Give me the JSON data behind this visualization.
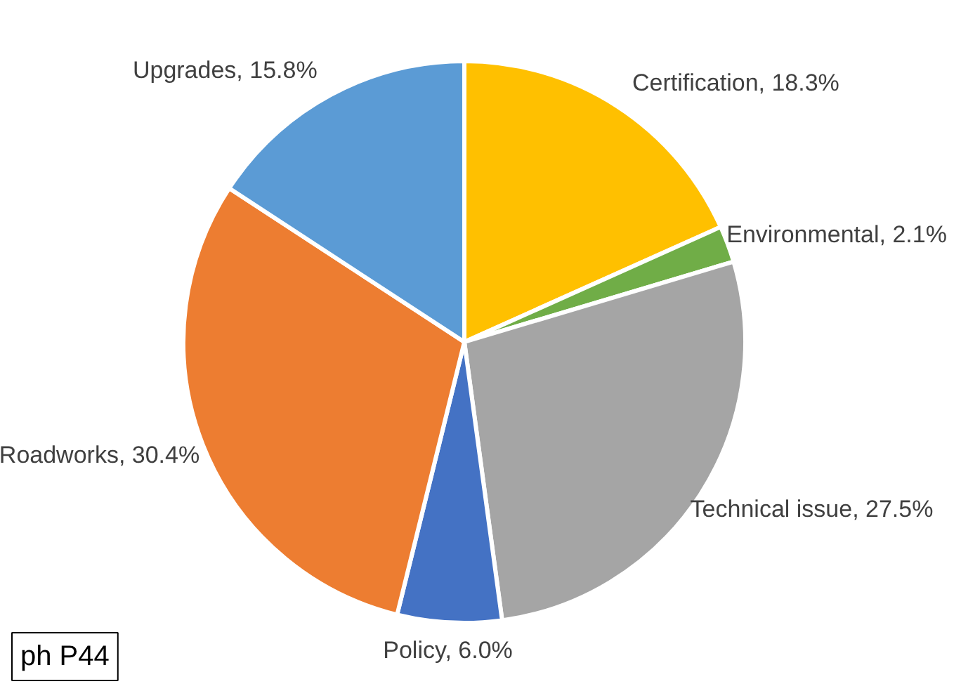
{
  "chart_data": {
    "type": "pie",
    "categories": [
      "Certification",
      "Environmental",
      "Technical issue",
      "Policy",
      "Roadworks",
      "Upgrades"
    ],
    "values": [
      18.3,
      2.1,
      27.5,
      6.0,
      30.4,
      15.8
    ],
    "colors": [
      "#ffc000",
      "#70ad47",
      "#a5a5a5",
      "#4472c4",
      "#ed7d31",
      "#5b9bd5"
    ],
    "value_labels": [
      "18.3%",
      "2.1%",
      "27.5%",
      "6.0%",
      "30.4%",
      "15.8%"
    ],
    "annotations": [
      "ph P44"
    ]
  }
}
